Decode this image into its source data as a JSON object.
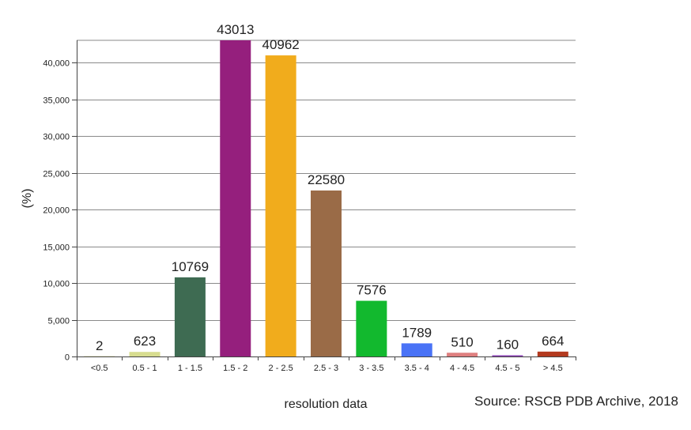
{
  "chart_data": {
    "type": "bar",
    "categories": [
      "<0.5",
      "0.5 - 1",
      "1 - 1.5",
      "1.5 - 2",
      "2 - 2.5",
      "2.5 - 3",
      "3 - 3.5",
      "3.5 - 4",
      "4 - 4.5",
      "4.5 - 5",
      "> 4.5"
    ],
    "values": [
      2,
      623,
      10769,
      43013,
      40962,
      22580,
      7576,
      1789,
      510,
      160,
      664
    ],
    "colors": [
      "#e6e6b3",
      "#d7dc8f",
      "#3e6b52",
      "#951f7d",
      "#f1ac1c",
      "#9a6b47",
      "#12b92e",
      "#4a73f6",
      "#de7f7f",
      "#8a3fb5",
      "#b33a1f"
    ],
    "ylabel": "(%)",
    "xlabel": "resolution data",
    "ylim": [
      0,
      43013
    ],
    "yticks": [
      0,
      5000,
      10000,
      15000,
      20000,
      25000,
      30000,
      35000,
      40000
    ],
    "ytick_labels": [
      "0",
      "5,000",
      "10,000",
      "15,000",
      "20,000",
      "25,000",
      "30,000",
      "35,000",
      "40,000"
    ],
    "grid": true,
    "legend": "none"
  },
  "source_text": "Source: RSCB PDB Archive, 2018"
}
